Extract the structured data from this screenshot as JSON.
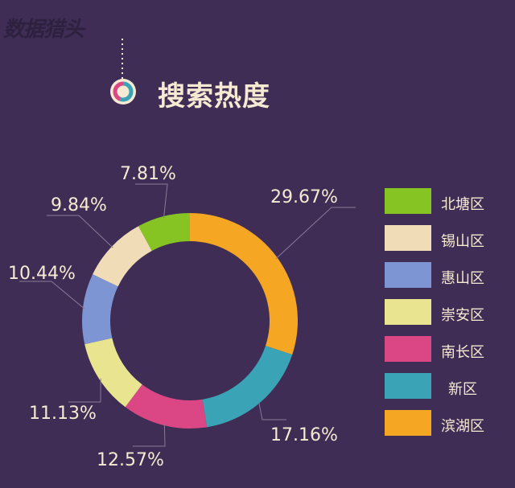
{
  "header": {
    "logo_text": "数据猎头",
    "title": "搜索热度"
  },
  "chart_data": {
    "type": "pie",
    "title": "搜索热度",
    "donut": true,
    "legend_position": "right",
    "slices": [
      {
        "name": "滨湖区",
        "value": 29.67,
        "label": "29.67%",
        "color": "#f5a623"
      },
      {
        "name": "新区",
        "value": 17.16,
        "label": "17.16%",
        "color": "#3aa3b6"
      },
      {
        "name": "南长区",
        "value": 12.57,
        "label": "12.57%",
        "color": "#db4784"
      },
      {
        "name": "崇安区",
        "value": 11.13,
        "label": "11.13%",
        "color": "#e9e48f"
      },
      {
        "name": "惠山区",
        "value": 10.44,
        "label": "10.44%",
        "color": "#7d96d3"
      },
      {
        "name": "锡山区",
        "value": 9.84,
        "label": "9.84%",
        "color": "#f1dcb8"
      },
      {
        "name": "北塘区",
        "value": 7.81,
        "label": "7.81%",
        "color": "#86c424"
      }
    ],
    "legend": [
      {
        "name": "北塘区",
        "color": "#86c424"
      },
      {
        "name": "锡山区",
        "color": "#f1dcb8"
      },
      {
        "name": "惠山区",
        "color": "#7d96d3"
      },
      {
        "name": "崇安区",
        "color": "#e9e48f"
      },
      {
        "name": "南长区",
        "color": "#db4784"
      },
      {
        "name": "新区",
        "color": "#3aa3b6"
      },
      {
        "name": "滨湖区",
        "color": "#f5a623"
      }
    ]
  }
}
